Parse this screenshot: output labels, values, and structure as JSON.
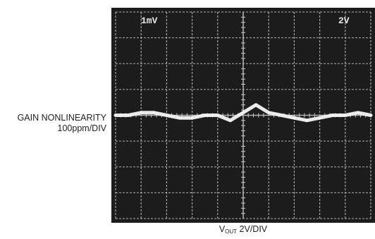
{
  "chart_data": {
    "type": "line",
    "title": "",
    "ylabel_line1": "GAIN NONLINEARITY",
    "ylabel_line2": "100ppm/DIV",
    "xlabel_main": "V",
    "xlabel_sub": "OUT",
    "xlabel_rest": "2V/DIV",
    "scope_labels": {
      "left": "1mV",
      "right": "2V"
    },
    "grid": true,
    "xlim": [
      -10,
      10
    ],
    "ylim": [
      -400,
      400
    ],
    "series": [
      {
        "color": "#f4f4f4",
        "x": [
          -10,
          -9,
          -8,
          -7,
          -6,
          -5,
          -4,
          -3,
          -2,
          -1,
          0,
          1,
          2,
          3,
          4,
          5,
          6,
          7,
          8,
          9,
          10
        ],
        "values": [
          0,
          0,
          10,
          10,
          0,
          -10,
          -10,
          0,
          0,
          -20,
          10,
          40,
          10,
          0,
          -10,
          -20,
          -10,
          0,
          0,
          10,
          0
        ]
      }
    ]
  },
  "colors": {
    "screen": "#1c1c1c",
    "grid": "#c8c8c8",
    "trace": "#f4f4f4"
  }
}
